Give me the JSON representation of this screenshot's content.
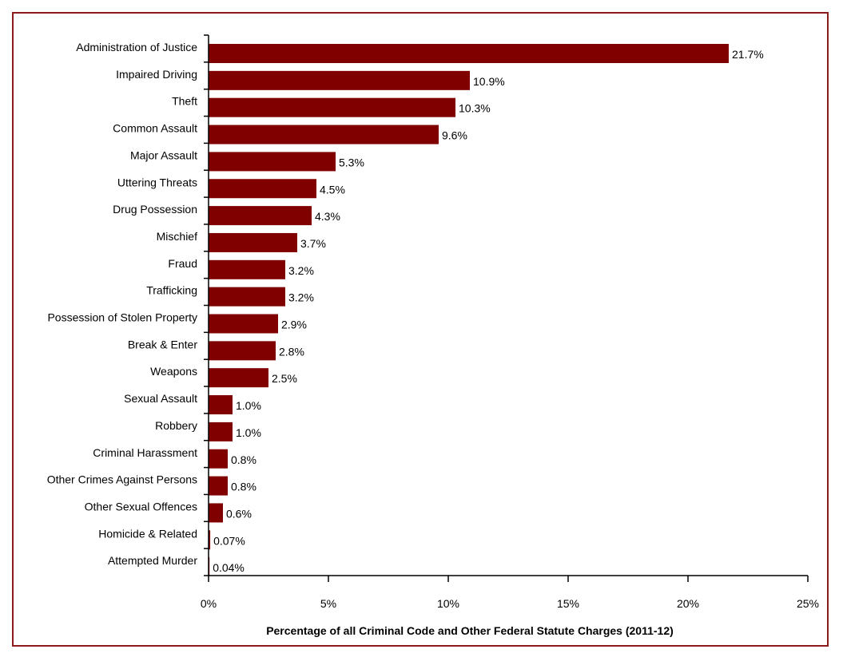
{
  "chart_data": {
    "type": "bar",
    "orientation": "horizontal",
    "categories": [
      "Administration of Justice",
      "Impaired Driving",
      "Theft",
      "Common Assault",
      "Major Assault",
      "Uttering Threats",
      "Drug Possession",
      "Mischief",
      "Fraud",
      "Trafficking",
      "Possession of Stolen Property",
      "Break & Enter",
      "Weapons",
      "Sexual Assault",
      "Robbery",
      "Criminal Harassment",
      "Other Crimes Against Persons",
      "Other Sexual Offences",
      "Homicide & Related",
      "Attempted Murder"
    ],
    "values": [
      21.7,
      10.9,
      10.3,
      9.6,
      5.3,
      4.5,
      4.3,
      3.7,
      3.2,
      3.2,
      2.9,
      2.8,
      2.5,
      1.0,
      1.0,
      0.8,
      0.8,
      0.6,
      0.07,
      0.04
    ],
    "data_labels": [
      "21.7%",
      "10.9%",
      "10.3%",
      "9.6%",
      "5.3%",
      "4.5%",
      "4.3%",
      "3.7%",
      "3.2%",
      "3.2%",
      "2.9%",
      "2.8%",
      "2.5%",
      "1.0%",
      "1.0%",
      "0.8%",
      "0.8%",
      "0.6%",
      "0.07%",
      "0.04%"
    ],
    "title": "",
    "xlabel": "Percentage of all Criminal Code and Other Federal Statute Charges (2011-12)",
    "ylabel": "",
    "xlim": [
      0,
      25
    ],
    "x_ticks": [
      0,
      5,
      10,
      15,
      20,
      25
    ],
    "x_tick_labels": [
      "0%",
      "5%",
      "10%",
      "15%",
      "20%",
      "25%"
    ],
    "grid": false,
    "legend": "none",
    "bar_color": "#800000",
    "border_color": "#8b1a1a"
  }
}
